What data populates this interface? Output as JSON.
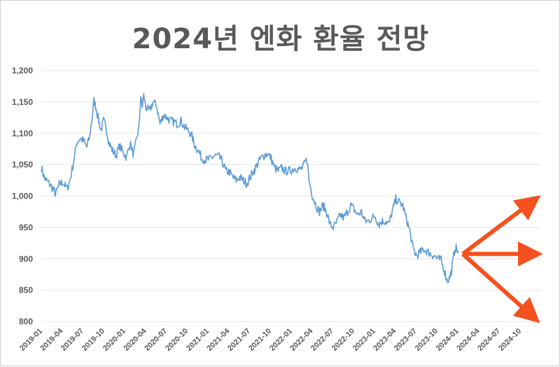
{
  "chart_data": {
    "type": "line",
    "title": "2024년 엔화 환율 전망",
    "xlabel": "",
    "ylabel": "",
    "ylim": [
      800,
      1200
    ],
    "yticks": [
      800,
      850,
      900,
      950,
      1000,
      1050,
      1100,
      1150,
      1200
    ],
    "ytick_labels": [
      "800",
      "850",
      "900",
      "950",
      "1,000",
      "1,050",
      "1,100",
      "1,150",
      "1,200"
    ],
    "xticks": [
      "2019-01",
      "2019-04",
      "2019-07",
      "2019-10",
      "2020-01",
      "2020-04",
      "2020-07",
      "2020-10",
      "2021-01",
      "2021-04",
      "2021-07",
      "2021-10",
      "2022-01",
      "2022-04",
      "2022-07",
      "2022-10",
      "2023-01",
      "2023-04",
      "2023-07",
      "2023-10",
      "2024-01",
      "2024-04",
      "2024-07",
      "2024-10"
    ],
    "grid": true,
    "series": [
      {
        "color": "#5b9bd5",
        "points": [
          [
            "2019-01-02",
            1045
          ],
          [
            "2019-01-15",
            1028
          ],
          [
            "2019-02-01",
            1022
          ],
          [
            "2019-02-20",
            1012
          ],
          [
            "2019-03-05",
            1003
          ],
          [
            "2019-03-20",
            1018
          ],
          [
            "2019-04-05",
            1022
          ],
          [
            "2019-04-25",
            1012
          ],
          [
            "2019-05-10",
            1030
          ],
          [
            "2019-05-25",
            1060
          ],
          [
            "2019-06-05",
            1085
          ],
          [
            "2019-06-20",
            1092
          ],
          [
            "2019-07-05",
            1088
          ],
          [
            "2019-07-20",
            1078
          ],
          [
            "2019-08-01",
            1095
          ],
          [
            "2019-08-12",
            1125
          ],
          [
            "2019-08-20",
            1152
          ],
          [
            "2019-08-30",
            1140
          ],
          [
            "2019-09-10",
            1120
          ],
          [
            "2019-09-20",
            1105
          ],
          [
            "2019-10-01",
            1120
          ],
          [
            "2019-10-12",
            1110
          ],
          [
            "2019-10-25",
            1085
          ],
          [
            "2019-11-10",
            1072
          ],
          [
            "2019-11-25",
            1065
          ],
          [
            "2019-12-10",
            1080
          ],
          [
            "2019-12-25",
            1070
          ],
          [
            "2020-01-10",
            1062
          ],
          [
            "2020-01-25",
            1085
          ],
          [
            "2020-02-10",
            1065
          ],
          [
            "2020-02-25",
            1095
          ],
          [
            "2020-03-05",
            1110
          ],
          [
            "2020-03-12",
            1160
          ],
          [
            "2020-03-18",
            1140
          ],
          [
            "2020-03-25",
            1160
          ],
          [
            "2020-04-05",
            1140
          ],
          [
            "2020-04-20",
            1135
          ],
          [
            "2020-05-05",
            1150
          ],
          [
            "2020-05-20",
            1145
          ],
          [
            "2020-06-05",
            1115
          ],
          [
            "2020-06-20",
            1130
          ],
          [
            "2020-07-05",
            1125
          ],
          [
            "2020-07-20",
            1120
          ],
          [
            "2020-08-05",
            1118
          ],
          [
            "2020-08-20",
            1115
          ],
          [
            "2020-09-05",
            1120
          ],
          [
            "2020-09-20",
            1110
          ],
          [
            "2020-10-05",
            1105
          ],
          [
            "2020-10-20",
            1098
          ],
          [
            "2020-11-05",
            1080
          ],
          [
            "2020-11-20",
            1072
          ],
          [
            "2020-12-05",
            1060
          ],
          [
            "2020-12-20",
            1058
          ],
          [
            "2021-01-05",
            1058
          ],
          [
            "2021-01-20",
            1062
          ],
          [
            "2021-02-05",
            1064
          ],
          [
            "2021-02-20",
            1062
          ],
          [
            "2021-03-05",
            1055
          ],
          [
            "2021-03-20",
            1040
          ],
          [
            "2021-04-05",
            1038
          ],
          [
            "2021-04-20",
            1030
          ],
          [
            "2021-05-05",
            1025
          ],
          [
            "2021-05-20",
            1030
          ],
          [
            "2021-06-05",
            1025
          ],
          [
            "2021-06-20",
            1020
          ],
          [
            "2021-07-05",
            1030
          ],
          [
            "2021-07-20",
            1040
          ],
          [
            "2021-08-05",
            1050
          ],
          [
            "2021-08-20",
            1060
          ],
          [
            "2021-09-05",
            1065
          ],
          [
            "2021-09-20",
            1068
          ],
          [
            "2021-10-05",
            1060
          ],
          [
            "2021-10-20",
            1045
          ],
          [
            "2021-11-05",
            1040
          ],
          [
            "2021-11-20",
            1045
          ],
          [
            "2021-12-05",
            1040
          ],
          [
            "2021-12-20",
            1040
          ],
          [
            "2022-01-05",
            1042
          ],
          [
            "2022-01-20",
            1045
          ],
          [
            "2022-02-05",
            1042
          ],
          [
            "2022-02-20",
            1045
          ],
          [
            "2022-03-05",
            1055
          ],
          [
            "2022-03-12",
            1058
          ],
          [
            "2022-03-20",
            1025
          ],
          [
            "2022-04-05",
            1000
          ],
          [
            "2022-04-20",
            985
          ],
          [
            "2022-05-05",
            975
          ],
          [
            "2022-05-20",
            985
          ],
          [
            "2022-06-05",
            975
          ],
          [
            "2022-06-20",
            955
          ],
          [
            "2022-07-05",
            950
          ],
          [
            "2022-07-20",
            958
          ],
          [
            "2022-08-05",
            970
          ],
          [
            "2022-08-20",
            965
          ],
          [
            "2022-09-05",
            975
          ],
          [
            "2022-09-20",
            985
          ],
          [
            "2022-10-05",
            978
          ],
          [
            "2022-10-20",
            970
          ],
          [
            "2022-11-05",
            975
          ],
          [
            "2022-11-20",
            960
          ],
          [
            "2022-12-05",
            960
          ],
          [
            "2022-12-20",
            965
          ],
          [
            "2023-01-05",
            968
          ],
          [
            "2023-01-20",
            955
          ],
          [
            "2023-02-05",
            960
          ],
          [
            "2023-02-20",
            960
          ],
          [
            "2023-03-05",
            955
          ],
          [
            "2023-03-20",
            975
          ],
          [
            "2023-04-05",
            995
          ],
          [
            "2023-04-20",
            990
          ],
          [
            "2023-05-05",
            985
          ],
          [
            "2023-05-20",
            965
          ],
          [
            "2023-06-05",
            945
          ],
          [
            "2023-06-20",
            915
          ],
          [
            "2023-07-05",
            905
          ],
          [
            "2023-07-20",
            910
          ],
          [
            "2023-08-05",
            915
          ],
          [
            "2023-08-20",
            912
          ],
          [
            "2023-09-05",
            908
          ],
          [
            "2023-09-20",
            905
          ],
          [
            "2023-10-05",
            900
          ],
          [
            "2023-10-20",
            898
          ],
          [
            "2023-11-05",
            880
          ],
          [
            "2023-11-15",
            866
          ],
          [
            "2023-11-25",
            868
          ],
          [
            "2023-12-05",
            880
          ],
          [
            "2023-12-15",
            905
          ],
          [
            "2023-12-20",
            918
          ],
          [
            "2023-12-28",
            915
          ],
          [
            "2024-01-05",
            910
          ]
        ]
      }
    ],
    "annotations": [
      {
        "type": "arrow",
        "direction": "up",
        "color": "#f4511e"
      },
      {
        "type": "arrow",
        "direction": "flat",
        "color": "#f4511e"
      },
      {
        "type": "arrow",
        "direction": "down",
        "color": "#f4511e"
      }
    ]
  }
}
